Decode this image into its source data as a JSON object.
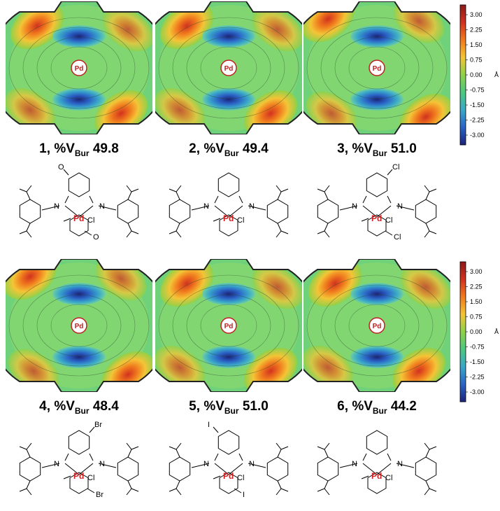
{
  "panels": [
    {
      "number": "1",
      "percent": "%V",
      "sub": "Bur",
      "value": "49.8",
      "substituent": "O",
      "mirror": false
    },
    {
      "number": "2",
      "percent": "%V",
      "sub": "Bur",
      "value": "49.4",
      "substituent": "",
      "mirror": false
    },
    {
      "number": "3",
      "percent": "%V",
      "sub": "Bur",
      "value": "51.0",
      "substituent": "Cl",
      "mirror": true
    },
    {
      "number": "4",
      "percent": "%V",
      "sub": "Bur",
      "value": "48.4",
      "substituent": "Br",
      "mirror": true
    },
    {
      "number": "5",
      "percent": "%V",
      "sub": "Bur",
      "value": "51.0",
      "substituent": "I",
      "mirror": false
    },
    {
      "number": "6",
      "percent": "%V",
      "sub": "Bur",
      "value": "44.2",
      "substituent": "",
      "mirror": false
    }
  ],
  "center_label": "Pd",
  "atom_labels": {
    "n": "N",
    "pd": "Pd",
    "cl": "Cl"
  },
  "scale": {
    "unit": "Å",
    "ticks": [
      "3.00",
      "2.25",
      "1.50",
      "0.75",
      "0.00",
      "-0.75",
      "-1.50",
      "-2.25",
      "-3.00"
    ],
    "colors": [
      "#8b1a1a",
      "#d2311f",
      "#f07a1e",
      "#f4c436",
      "#8fd14a",
      "#4cc87f",
      "#3aa8c9",
      "#2a63c6",
      "#1c237a"
    ]
  }
}
